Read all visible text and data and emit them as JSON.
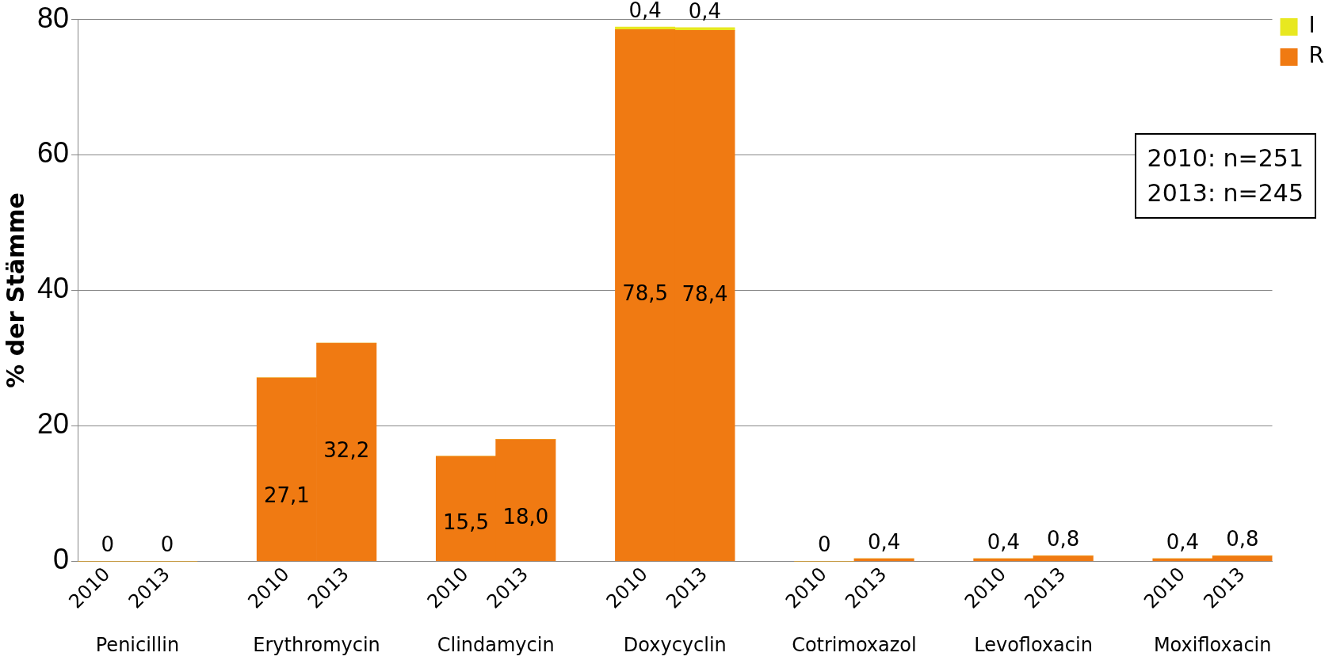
{
  "chart_data": {
    "type": "bar",
    "stacked": true,
    "ylabel": "% der Stämme",
    "categories": [
      "2010",
      "2013",
      "2010",
      "2013",
      "2010",
      "2013",
      "2010",
      "2013",
      "2010",
      "2013",
      "2010",
      "2013",
      "2010",
      "2013"
    ],
    "series": [
      {
        "name": "R",
        "color": "#f07a12",
        "values": [
          0,
          0,
          27.1,
          32.2,
          15.5,
          18.0,
          78.5,
          78.4,
          0,
          0.4,
          0.4,
          0.8,
          0.4,
          0.8
        ],
        "value_labels": [
          "0",
          "0",
          "27,1",
          "32,2",
          "15,5",
          "18,0",
          "78,5",
          "78,4",
          "0",
          "0,4",
          "0,4",
          "0,8",
          "0,4",
          "0,8"
        ]
      },
      {
        "name": "I",
        "color": "#e8e820",
        "values": [
          0,
          0,
          0,
          0,
          0,
          0,
          0.4,
          0.4,
          0,
          0,
          0,
          0,
          0,
          0
        ],
        "value_labels": [
          null,
          null,
          null,
          null,
          null,
          null,
          "0,4",
          "0,4",
          null,
          null,
          null,
          null,
          null,
          null
        ]
      }
    ],
    "ylim": [
      0,
      80
    ],
    "yticks": [
      0,
      20,
      40,
      60,
      80
    ],
    "grid": "y",
    "legend": "top right",
    "annotations": [
      "Penicillin",
      "Erythromycin",
      "Clindamycin",
      "Doxycyclin",
      "Cotrimoxazol",
      "Levofloxacin",
      "Moxifloxacin",
      "2010: n=251",
      "2013: n=245"
    ]
  }
}
